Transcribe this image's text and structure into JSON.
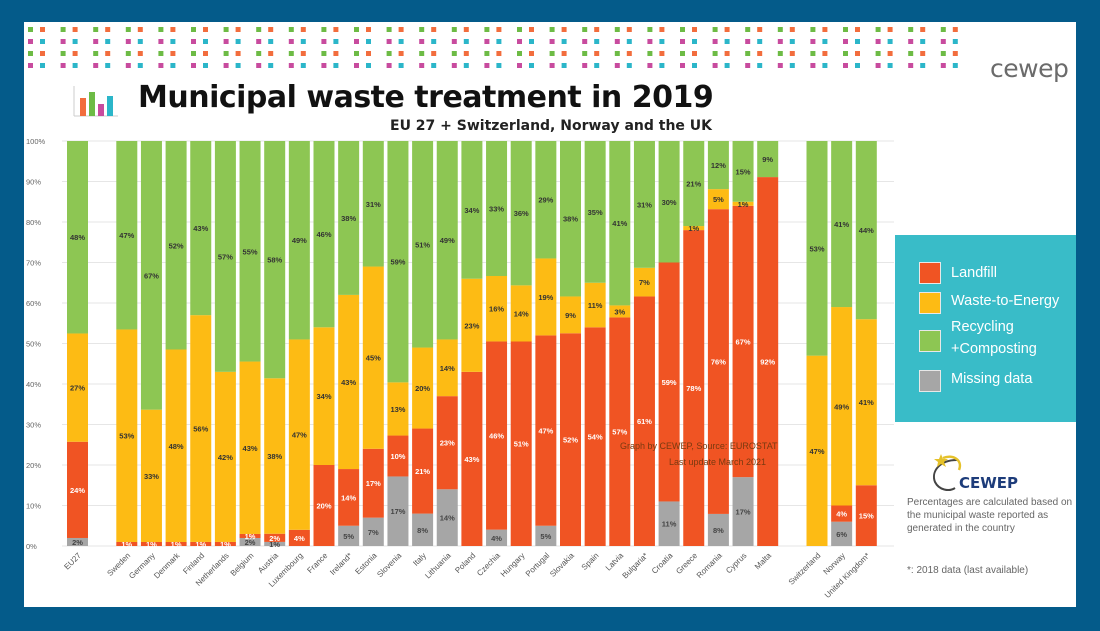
{
  "header": {
    "brand": "cewep",
    "title": "Municipal waste treatment in 2019",
    "subtitle": "EU 27 + Switzerland, Norway and the UK"
  },
  "colors": {
    "background": "#045b8a",
    "landfill": "#f05423",
    "wte": "#fdbb14",
    "recycling": "#8dc653",
    "missing": "#a6a6a6",
    "legend_bg": "#39bcc8"
  },
  "legend": {
    "items": [
      {
        "key": "landfill",
        "label": "Landfill"
      },
      {
        "key": "wte",
        "label": "Waste-to-Energy"
      },
      {
        "key": "recycling",
        "label_line1": "Recycling",
        "label_line2": "+Composting"
      },
      {
        "key": "missing",
        "label": "Missing data"
      }
    ]
  },
  "credits": {
    "line1": "Graph by CEWEP, Source: EUROSTAT",
    "line2": "Last update March 2021"
  },
  "logo": {
    "text": "CEWEP"
  },
  "notes": {
    "method": "Percentages are calculated based on the municipal waste reported as generated in the country",
    "asterisk": "*: 2018 data (last available)"
  },
  "chart_data": {
    "type": "bar",
    "stacked": true,
    "normalized": true,
    "title": "Municipal waste treatment in 2019",
    "subtitle": "EU 27 + Switzerland, Norway and the UK",
    "xlabel": "",
    "ylabel": "",
    "ylim": [
      0,
      100
    ],
    "yticks": [
      "0%",
      "10%",
      "20%",
      "30%",
      "40%",
      "50%",
      "60%",
      "70%",
      "80%",
      "90%",
      "100%"
    ],
    "grid": true,
    "legend_position": "right",
    "categories": [
      "EU27",
      "",
      "Sweden",
      "Germany",
      "Denmark",
      "Finland",
      "Netherlands",
      "Belgium",
      "Austria",
      "Luxembourg",
      "France",
      "Ireland*",
      "Estonia",
      "Slovenia",
      "Italy",
      "Lithuania",
      "Poland",
      "Czechia",
      "Hungary",
      "Portugal",
      "Slovakia",
      "Spain",
      "Latvia",
      "Bulgaria*",
      "Croatia",
      "Greece",
      "Romania",
      "Cyprus",
      "Malta",
      "",
      "Switzerland",
      "Norway",
      "United Kingdom*"
    ],
    "series": [
      {
        "name": "Missing data",
        "key": "missing",
        "values": [
          2,
          null,
          0,
          0,
          0,
          0,
          0,
          2,
          1,
          0,
          0,
          5,
          7,
          17,
          8,
          14,
          0,
          4,
          0,
          5,
          0,
          0,
          0,
          0,
          11,
          0,
          8,
          17,
          0,
          null,
          0,
          6,
          0
        ]
      },
      {
        "name": "Landfill",
        "key": "landfill",
        "values": [
          24,
          null,
          1,
          1,
          1,
          1,
          1,
          1,
          2,
          4,
          20,
          14,
          17,
          10,
          21,
          23,
          43,
          46,
          51,
          47,
          52,
          54,
          57,
          61,
          59,
          78,
          76,
          67,
          92,
          null,
          0,
          4,
          15
        ]
      },
      {
        "name": "Waste-to-Energy",
        "key": "wte",
        "values": [
          27,
          null,
          53,
          33,
          48,
          56,
          42,
          43,
          38,
          47,
          34,
          43,
          45,
          13,
          20,
          14,
          23,
          16,
          14,
          19,
          9,
          11,
          3,
          7,
          0,
          1,
          5,
          1,
          0,
          null,
          47,
          49,
          41
        ]
      },
      {
        "name": "Recycling +Composting",
        "key": "recycling",
        "values": [
          48,
          null,
          47,
          67,
          52,
          43,
          57,
          55,
          58,
          49,
          46,
          38,
          31,
          59,
          51,
          49,
          34,
          33,
          36,
          29,
          38,
          35,
          41,
          31,
          30,
          21,
          12,
          15,
          9,
          null,
          53,
          41,
          44
        ]
      }
    ]
  }
}
